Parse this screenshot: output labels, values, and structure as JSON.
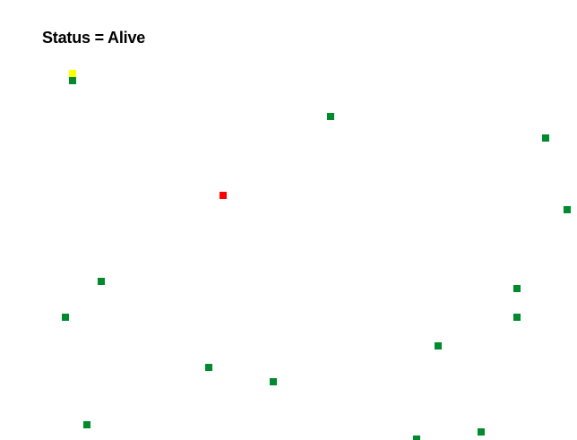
{
  "status": {
    "text": "Status = Alive"
  },
  "colors": {
    "background": "#ffffff",
    "player": "#ffff00",
    "enemy": "#ff0000",
    "food": "#008a2e"
  }
}
